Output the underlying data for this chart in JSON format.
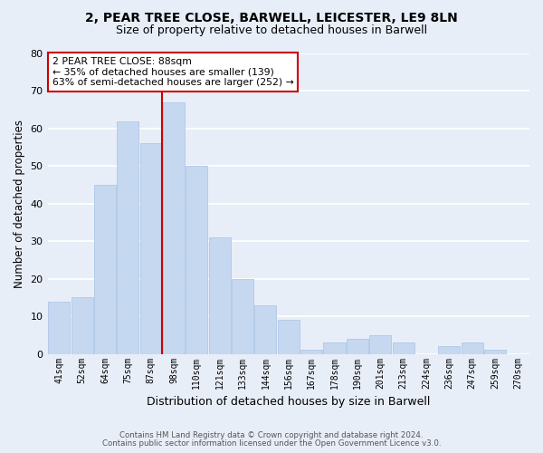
{
  "title": "2, PEAR TREE CLOSE, BARWELL, LEICESTER, LE9 8LN",
  "subtitle": "Size of property relative to detached houses in Barwell",
  "xlabel": "Distribution of detached houses by size in Barwell",
  "ylabel": "Number of detached properties",
  "bar_labels": [
    "41sqm",
    "52sqm",
    "64sqm",
    "75sqm",
    "87sqm",
    "98sqm",
    "110sqm",
    "121sqm",
    "133sqm",
    "144sqm",
    "156sqm",
    "167sqm",
    "178sqm",
    "190sqm",
    "201sqm",
    "213sqm",
    "224sqm",
    "236sqm",
    "247sqm",
    "259sqm",
    "270sqm"
  ],
  "bar_values": [
    14,
    15,
    45,
    62,
    56,
    67,
    50,
    31,
    20,
    13,
    9,
    1,
    3,
    4,
    5,
    3,
    0,
    2,
    3,
    1,
    0
  ],
  "bar_color": "#c5d8f0",
  "bar_edge_color": "#aec8e8",
  "vline_index": 4,
  "vline_color": "#cc0000",
  "annotation_line1": "2 PEAR TREE CLOSE: 88sqm",
  "annotation_line2": "← 35% of detached houses are smaller (139)",
  "annotation_line3": "63% of semi-detached houses are larger (252) →",
  "annotation_box_color": "#ffffff",
  "annotation_box_edge": "#cc0000",
  "ylim": [
    0,
    80
  ],
  "yticks": [
    0,
    10,
    20,
    30,
    40,
    50,
    60,
    70,
    80
  ],
  "footer_line1": "Contains HM Land Registry data © Crown copyright and database right 2024.",
  "footer_line2": "Contains public sector information licensed under the Open Government Licence v3.0.",
  "bg_color": "#e8eef8",
  "plot_bg_color": "#e8eef8",
  "grid_color": "#ffffff",
  "title_fontsize": 10,
  "subtitle_fontsize": 9
}
